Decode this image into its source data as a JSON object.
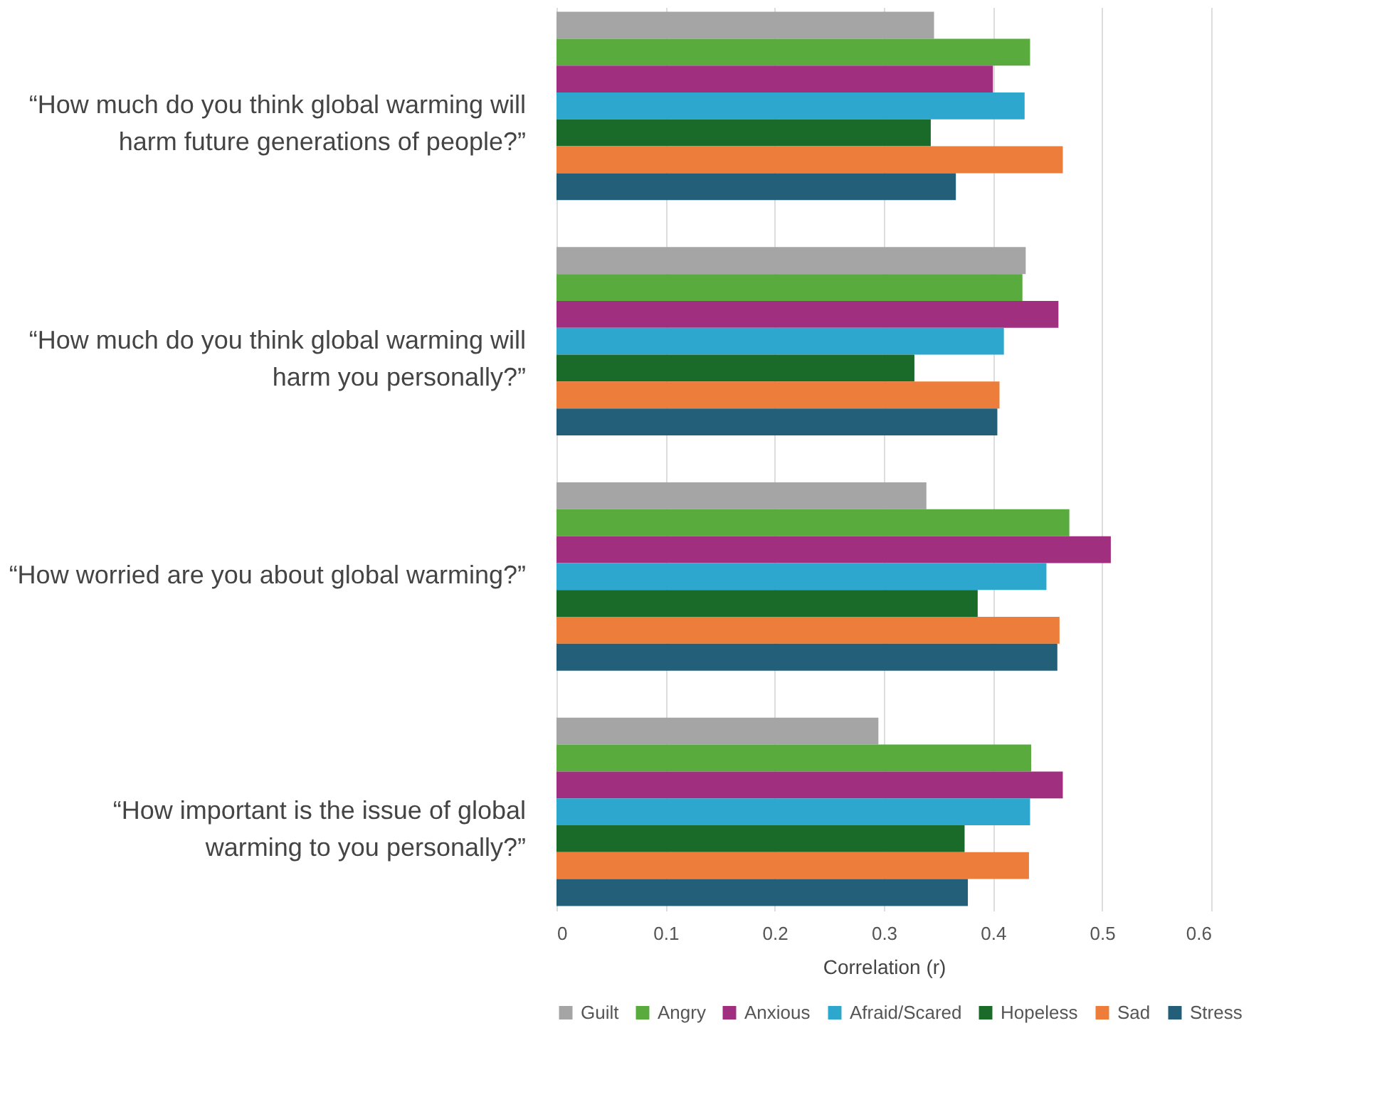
{
  "chart_data": {
    "type": "bar",
    "orientation": "horizontal",
    "xlabel": "Correlation (r)",
    "categories": [
      "“How much do you think global warming will harm future generations of people?”",
      "“How much do you think global warming will harm you personally?”",
      "“How worried are you about global warming?”",
      "“How important is the issue of global warming to you personally?”"
    ],
    "series": [
      {
        "name": "Guilt",
        "color": "#a5a5a5",
        "values": [
          0.346,
          0.43,
          0.339,
          0.295
        ]
      },
      {
        "name": "Angry",
        "color": "#5aab3e",
        "values": [
          0.434,
          0.427,
          0.47,
          0.435
        ]
      },
      {
        "name": "Anxious",
        "color": "#a0307f",
        "values": [
          0.4,
          0.46,
          0.508,
          0.464
        ]
      },
      {
        "name": "Afraid/Scared",
        "color": "#2ea7cf",
        "values": [
          0.429,
          0.41,
          0.449,
          0.434
        ]
      },
      {
        "name": "Hopeless",
        "color": "#1a6b2a",
        "values": [
          0.343,
          0.328,
          0.386,
          0.374
        ]
      },
      {
        "name": "Sad",
        "color": "#ed7d3a",
        "values": [
          0.464,
          0.406,
          0.461,
          0.433
        ]
      },
      {
        "name": "Stress",
        "color": "#245f7a",
        "values": [
          0.366,
          0.404,
          0.459,
          0.377
        ]
      }
    ],
    "xlim": [
      0,
      0.6
    ],
    "xticks": [
      0,
      0.1,
      0.2,
      0.3,
      0.4,
      0.5,
      0.6
    ],
    "grid": "x",
    "legend": "bottom"
  }
}
